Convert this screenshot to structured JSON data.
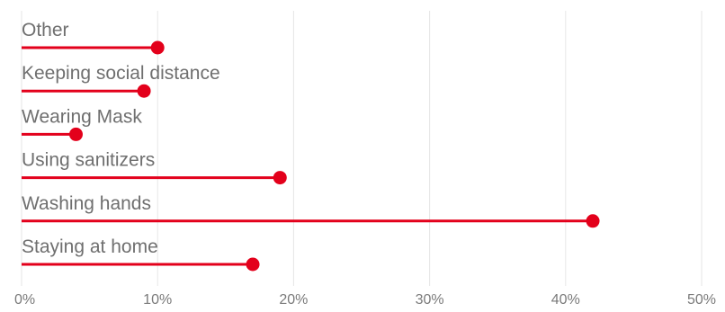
{
  "chart_data": {
    "type": "lollipop",
    "title": "",
    "xlabel": "",
    "ylabel": "",
    "categories": [
      "Other",
      "Keeping social distance",
      "Wearing Mask",
      "Using sanitizers",
      "Washing hands",
      "Staying at home"
    ],
    "values": [
      10,
      9,
      4,
      19,
      42,
      17
    ],
    "value_unit": "percent",
    "xlim": [
      0,
      50
    ],
    "x_ticks": [
      0,
      10,
      20,
      30,
      40,
      50
    ],
    "x_tick_labels": [
      "0%",
      "10%",
      "20%",
      "30%",
      "40%",
      "50%"
    ],
    "grid": "vertical",
    "legend": "none",
    "colors": {
      "series": "#e3001b",
      "gridline": "#e6e6e6",
      "category_text": "#6f6f6f",
      "tick_text": "#7a7a7a"
    }
  }
}
